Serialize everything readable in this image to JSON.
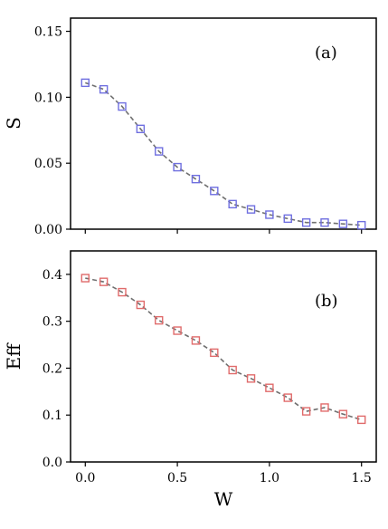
{
  "chart_data": [
    {
      "type": "line",
      "panel_label": "(a)",
      "ylabel": "S",
      "xlabel": "",
      "xlim": [
        -0.08,
        1.58
      ],
      "ylim": [
        0.0,
        0.16
      ],
      "x_ticks": [
        0.0,
        0.5,
        1.0,
        1.5
      ],
      "x_tick_labels": [],
      "y_ticks": [
        0.0,
        0.05,
        0.1,
        0.15
      ],
      "y_tick_labels": [
        "0.00",
        "0.05",
        "0.10",
        "0.15"
      ],
      "grid": false,
      "series": [
        {
          "color": "#6f6fe0",
          "line_color": "#707070",
          "line_style": "dashed",
          "marker": "square-open",
          "x": [
            0.0,
            0.1,
            0.2,
            0.3,
            0.4,
            0.5,
            0.6,
            0.7,
            0.8,
            0.9,
            1.0,
            1.1,
            1.2,
            1.3,
            1.4,
            1.5
          ],
          "y": [
            0.111,
            0.106,
            0.093,
            0.076,
            0.059,
            0.047,
            0.038,
            0.029,
            0.019,
            0.015,
            0.011,
            0.008,
            0.005,
            0.005,
            0.004,
            0.003
          ]
        }
      ]
    },
    {
      "type": "line",
      "panel_label": "(b)",
      "ylabel": "Eff",
      "xlabel": "W",
      "xlim": [
        -0.08,
        1.58
      ],
      "ylim": [
        0.0,
        0.45
      ],
      "x_ticks": [
        0.0,
        0.5,
        1.0,
        1.5
      ],
      "x_tick_labels": [
        "0.0",
        "0.5",
        "1.0",
        "1.5"
      ],
      "y_ticks": [
        0.0,
        0.1,
        0.2,
        0.3,
        0.4
      ],
      "y_tick_labels": [
        "0.0",
        "0.1",
        "0.2",
        "0.3",
        "0.4"
      ],
      "grid": false,
      "series": [
        {
          "color": "#e06b6b",
          "line_color": "#707070",
          "line_style": "dashed",
          "marker": "square-open",
          "x": [
            0.0,
            0.1,
            0.2,
            0.3,
            0.4,
            0.5,
            0.6,
            0.7,
            0.8,
            0.9,
            1.0,
            1.1,
            1.2,
            1.3,
            1.4,
            1.5
          ],
          "y": [
            0.392,
            0.384,
            0.362,
            0.335,
            0.302,
            0.28,
            0.259,
            0.233,
            0.196,
            0.178,
            0.158,
            0.137,
            0.108,
            0.116,
            0.102,
            0.09
          ]
        }
      ]
    }
  ]
}
